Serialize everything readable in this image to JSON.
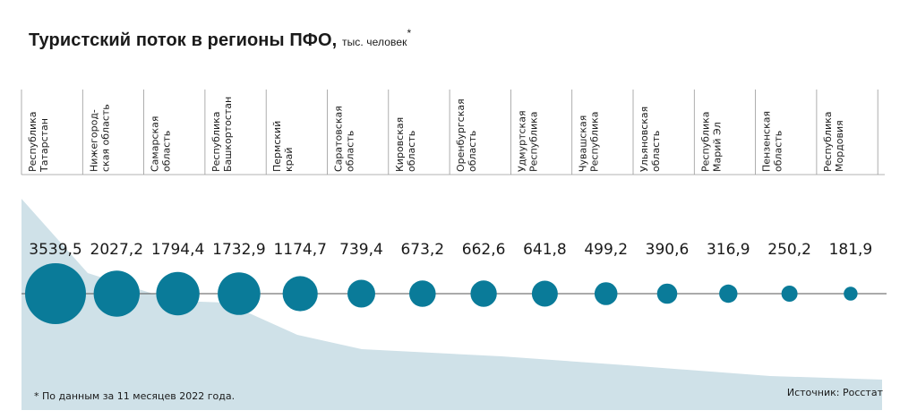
{
  "header": {
    "title": "Туристский поток в регионы ПФО,",
    "unit": "тыс. человек",
    "marker": "*"
  },
  "footer": {
    "footnote": "* По данным за 11 месяцев 2022 года.",
    "source": "Источник: Росстат"
  },
  "colors": {
    "bubble": "#0a7b99",
    "area": "#cfe1e8",
    "axis": "#555555",
    "divider": "#9a9a9a"
  },
  "chart_data": {
    "type": "bubble",
    "title": "Туристский поток в регионы ПФО, тыс. человек*",
    "categories": [
      [
        "Республика",
        "Татарстан"
      ],
      [
        "Нижегород-",
        "ская область"
      ],
      [
        "Самарская",
        "область"
      ],
      [
        "Республика",
        "Башкортостан"
      ],
      [
        "Пермский",
        "край"
      ],
      [
        "Саратовская",
        "область"
      ],
      [
        "Кировская",
        "область"
      ],
      [
        "Оренбургская",
        "область"
      ],
      [
        "Удмуртская",
        "Республика"
      ],
      [
        "Чувашская",
        "Республика"
      ],
      [
        "Ульяновская",
        "область"
      ],
      [
        "Республика",
        "Марий Эл"
      ],
      [
        "Пензенская",
        "область"
      ],
      [
        "Республика",
        "Мордовия"
      ]
    ],
    "values": [
      3539.5,
      2027.2,
      1794.4,
      1732.9,
      1174.7,
      739.4,
      673.2,
      662.6,
      641.8,
      499.2,
      390.6,
      316.9,
      250.2,
      181.9
    ],
    "value_labels": [
      "3539,5",
      "2027,2",
      "1794,4",
      "1732,9",
      "1174,7",
      "739,4",
      "673,2",
      "662,6",
      "641,8",
      "499,2",
      "390,6",
      "316,9",
      "250,2",
      "181,9"
    ]
  }
}
